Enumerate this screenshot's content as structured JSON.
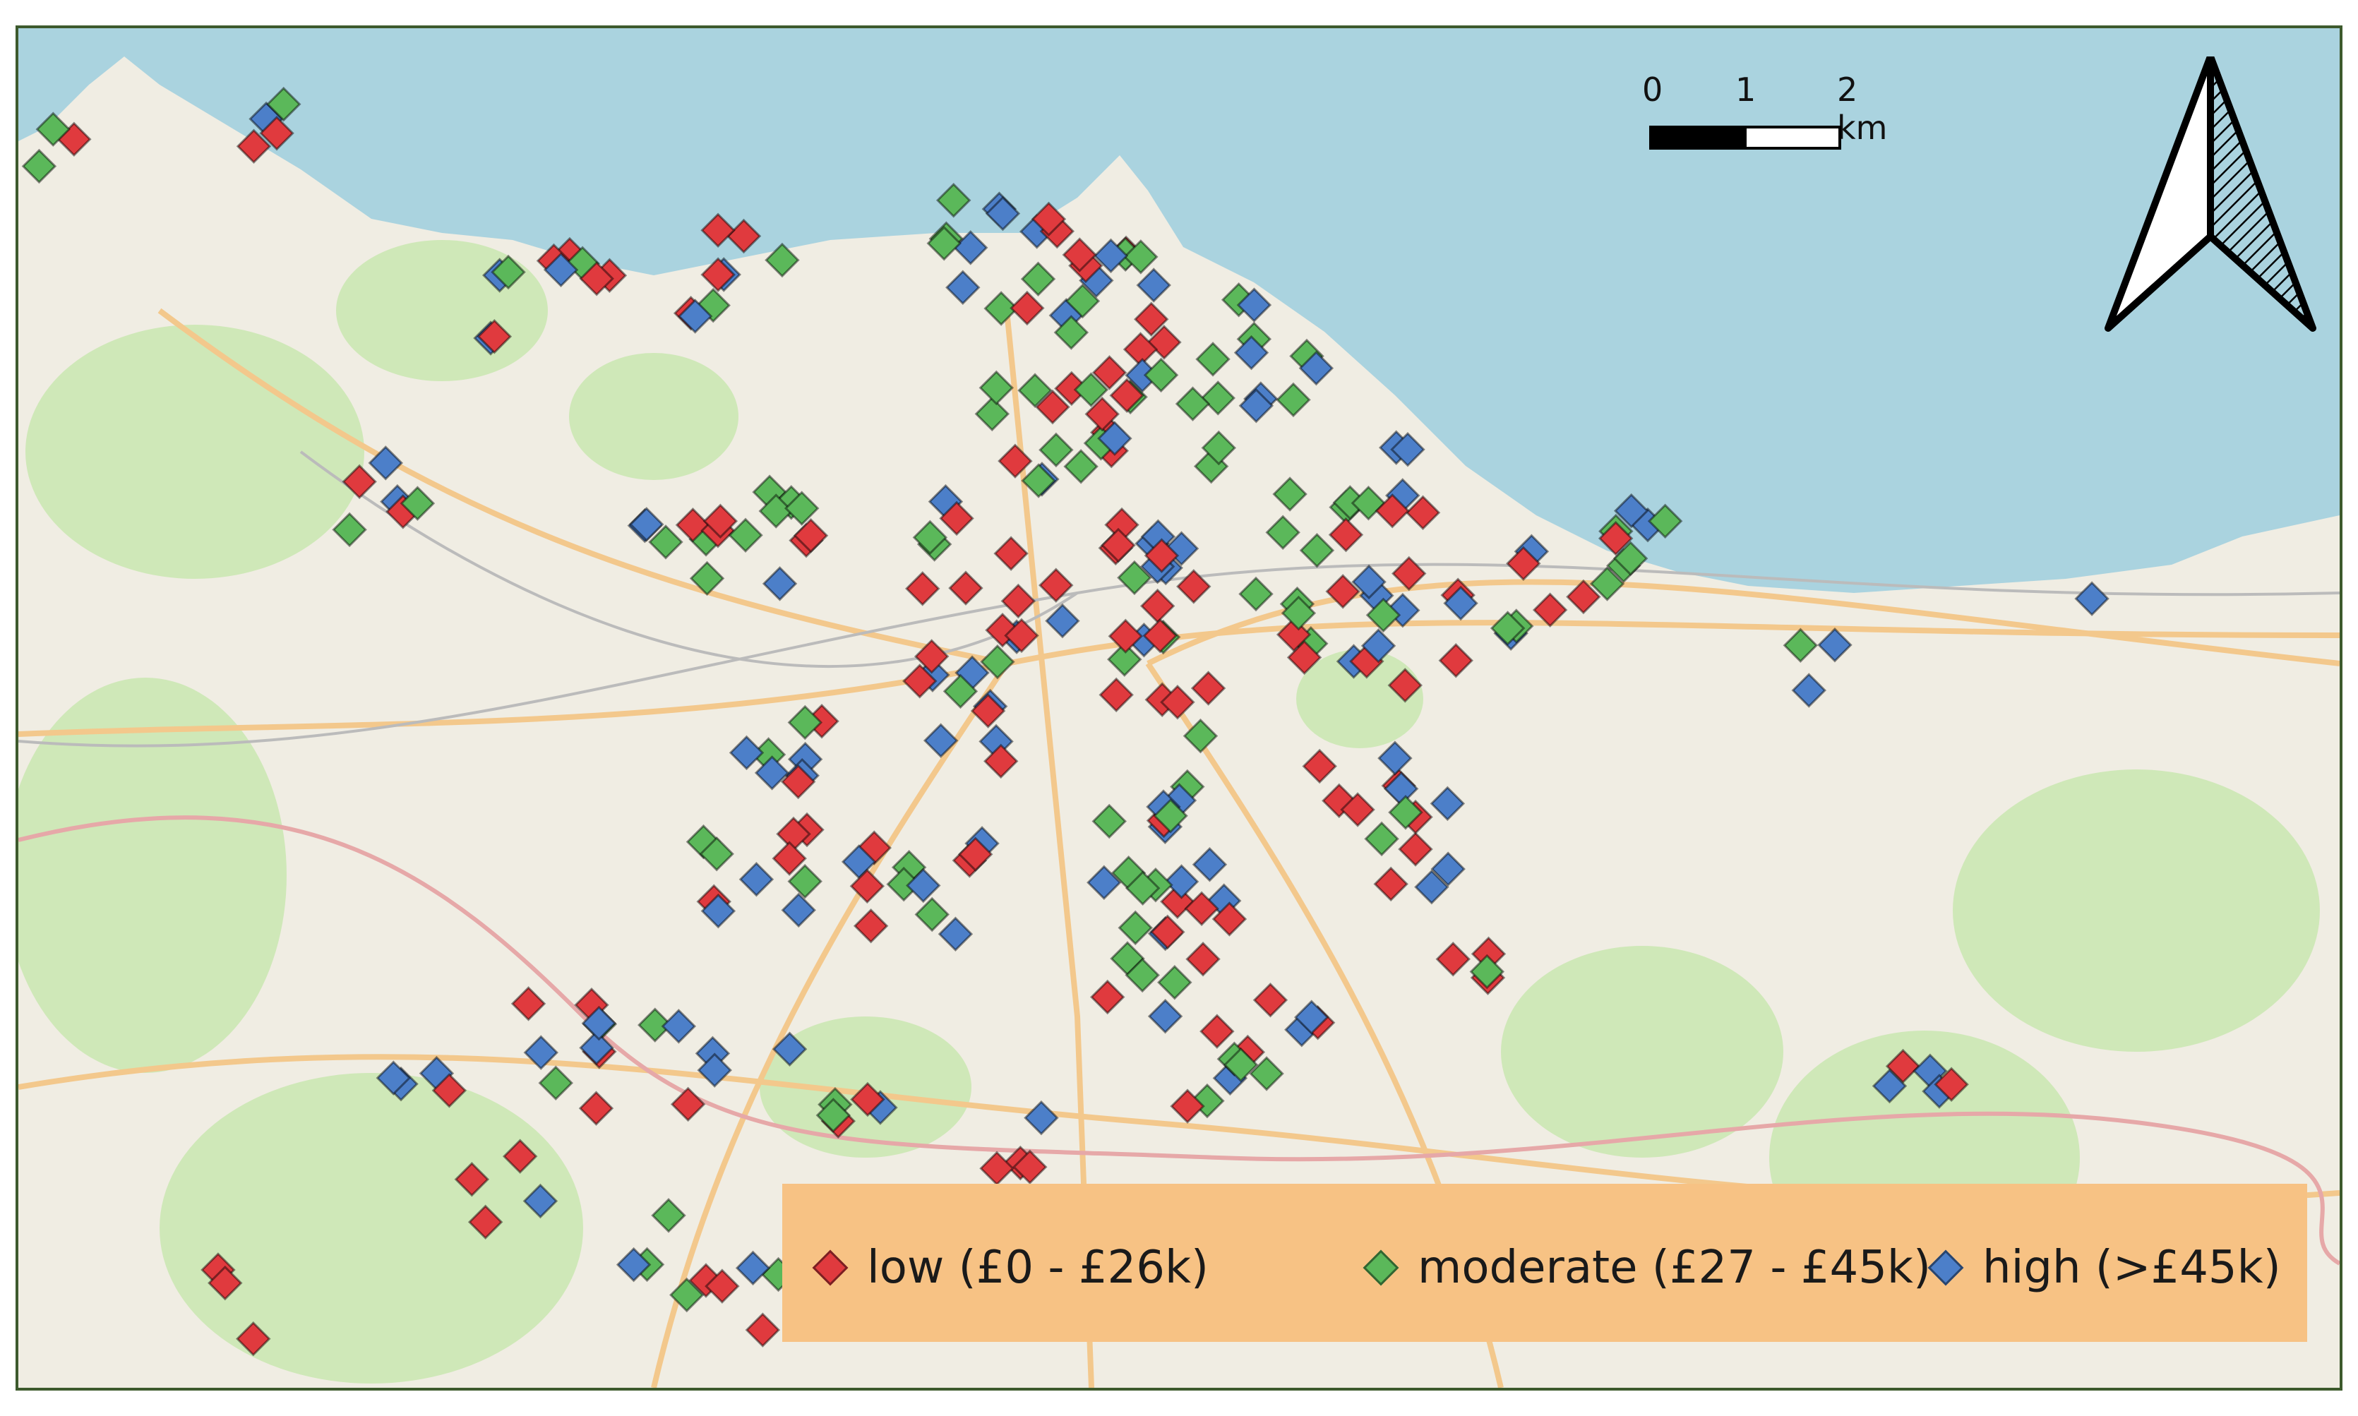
{
  "map": {
    "scale": {
      "labels": [
        "0",
        "1",
        "2 km"
      ]
    },
    "north_arrow": {
      "icon": "north-arrow-icon"
    },
    "legend": {
      "items": [
        {
          "label": "low (£0 - £26k)",
          "color": "#e03a3e"
        },
        {
          "label": "moderate (£27 - £45k)",
          "color": "#5bb85a"
        },
        {
          "label": "high (>£45k)",
          "color": "#4c7fc9"
        }
      ]
    },
    "colors": {
      "sea": "#aad3df",
      "land": "#f0ede3",
      "parks": "#cfe8b8",
      "roads": "#f3c88c",
      "low": "#e03a3e",
      "moderate": "#5bb85a",
      "high": "#4c7fc9"
    }
  }
}
